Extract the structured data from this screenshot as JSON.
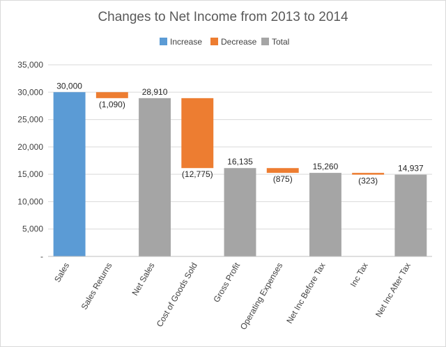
{
  "chart_data": {
    "type": "bar",
    "title": "Changes to Net Income from 2013 to 2014",
    "legend": {
      "placement": "top",
      "entries": [
        {
          "key": "increase",
          "label": "Increase",
          "color": "#5b9bd5"
        },
        {
          "key": "decrease",
          "label": "Decrease",
          "color": "#ed7d31"
        },
        {
          "key": "total",
          "label": "Total",
          "color": "#a5a5a5"
        }
      ]
    },
    "ylim": [
      0,
      35000
    ],
    "yticks": [
      {
        "value": 0,
        "label": "-"
      },
      {
        "value": 5000,
        "label": "5,000"
      },
      {
        "value": 10000,
        "label": "10,000"
      },
      {
        "value": 15000,
        "label": "15,000"
      },
      {
        "value": 20000,
        "label": "20,000"
      },
      {
        "value": 25000,
        "label": "25,000"
      },
      {
        "value": 30000,
        "label": "30,000"
      },
      {
        "value": 35000,
        "label": "35,000"
      }
    ],
    "grid": true,
    "bars": [
      {
        "category": "Sales",
        "kind": "increase",
        "start": 0,
        "end": 30000,
        "label": "30,000"
      },
      {
        "category": "Sales Returns",
        "kind": "decrease",
        "start": 30000,
        "end": 28910,
        "label": "(1,090)"
      },
      {
        "category": "Net Sales",
        "kind": "total",
        "start": 0,
        "end": 28910,
        "label": "28,910"
      },
      {
        "category": "Cost of Goods Sold",
        "kind": "decrease",
        "start": 28910,
        "end": 16135,
        "label": "(12,775)"
      },
      {
        "category": "Gross Profit",
        "kind": "total",
        "start": 0,
        "end": 16135,
        "label": "16,135"
      },
      {
        "category": "Operating Expenses",
        "kind": "decrease",
        "start": 16135,
        "end": 15260,
        "label": "(875)"
      },
      {
        "category": "Net Inc Before Tax",
        "kind": "total",
        "start": 0,
        "end": 15260,
        "label": "15,260"
      },
      {
        "category": "Inc Tax",
        "kind": "decrease",
        "start": 15260,
        "end": 14937,
        "label": "(323)"
      },
      {
        "category": "Net Inc After Tax",
        "kind": "total",
        "start": 0,
        "end": 14937,
        "label": "14,937"
      }
    ]
  }
}
